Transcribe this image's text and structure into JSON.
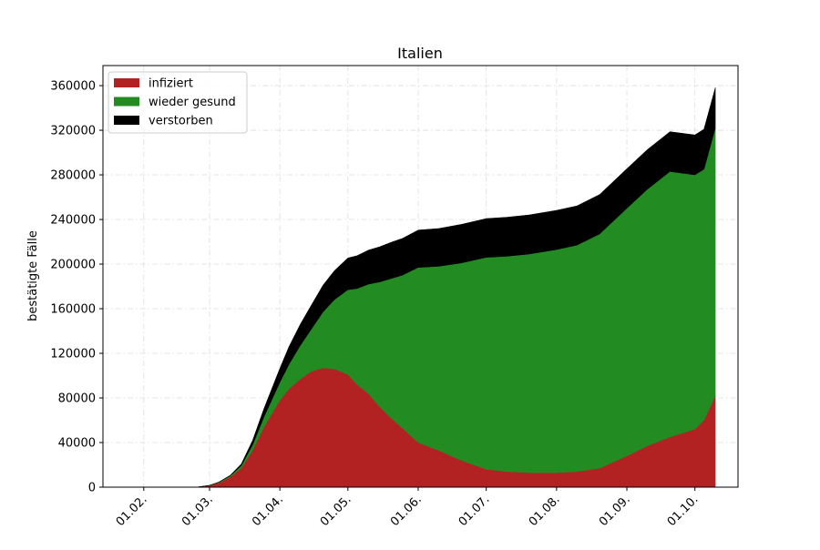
{
  "chart_data": {
    "type": "area",
    "stacked": true,
    "title": "Italien",
    "xlabel": "",
    "ylabel": "bestätigte Fälle",
    "ylim": [
      0,
      378000
    ],
    "xlim": [
      "2020-01-14",
      "2020-10-20"
    ],
    "yticks": [
      0,
      40000,
      80000,
      120000,
      160000,
      200000,
      240000,
      280000,
      320000,
      360000
    ],
    "xticks": [
      {
        "date": "2020-02-01",
        "label": "01.02."
      },
      {
        "date": "2020-03-01",
        "label": "01.03."
      },
      {
        "date": "2020-04-01",
        "label": "01.04."
      },
      {
        "date": "2020-05-01",
        "label": "01.05."
      },
      {
        "date": "2020-06-01",
        "label": "01.06."
      },
      {
        "date": "2020-07-01",
        "label": "01.07."
      },
      {
        "date": "2020-08-01",
        "label": "01.08."
      },
      {
        "date": "2020-09-01",
        "label": "01.09."
      },
      {
        "date": "2020-10-01",
        "label": "01.10."
      }
    ],
    "grid": true,
    "legend_position": "top-left",
    "x": [
      "2020-01-22",
      "2020-02-01",
      "2020-02-15",
      "2020-02-25",
      "2020-03-01",
      "2020-03-05",
      "2020-03-10",
      "2020-03-15",
      "2020-03-20",
      "2020-03-25",
      "2020-04-01",
      "2020-04-05",
      "2020-04-10",
      "2020-04-15",
      "2020-04-20",
      "2020-04-25",
      "2020-05-01",
      "2020-05-05",
      "2020-05-10",
      "2020-05-15",
      "2020-05-20",
      "2020-05-25",
      "2020-06-01",
      "2020-06-10",
      "2020-06-20",
      "2020-07-01",
      "2020-07-10",
      "2020-07-20",
      "2020-08-01",
      "2020-08-10",
      "2020-08-20",
      "2020-09-01",
      "2020-09-10",
      "2020-09-20",
      "2020-10-01",
      "2020-10-05",
      "2020-10-10"
    ],
    "series": [
      {
        "name": "infiziert",
        "color": "#b22222",
        "values": [
          0,
          0,
          0,
          200,
          1500,
          3900,
          9000,
          17000,
          33000,
          54000,
          78000,
          88000,
          97000,
          104000,
          107000,
          106000,
          101000,
          92000,
          84000,
          72000,
          62000,
          53000,
          40000,
          33000,
          24000,
          16000,
          14000,
          13000,
          13000,
          14000,
          17000,
          28000,
          37000,
          45000,
          52000,
          60000,
          82000
        ]
      },
      {
        "name": "wieder gesund",
        "color": "#228b22",
        "values": [
          0,
          0,
          0,
          0,
          100,
          500,
          1000,
          2300,
          5000,
          9000,
          16000,
          22000,
          30000,
          38000,
          50000,
          62000,
          76000,
          86000,
          98000,
          112000,
          125000,
          137000,
          157000,
          165000,
          177000,
          190000,
          193000,
          196000,
          200000,
          203000,
          210000,
          222000,
          230000,
          238000,
          228000,
          225000,
          240000
        ]
      },
      {
        "name": "verstorben",
        "color": "#000000",
        "values": [
          0,
          0,
          0,
          10,
          30,
          120,
          500,
          1500,
          4000,
          7500,
          12500,
          15900,
          19000,
          21600,
          24000,
          26000,
          28500,
          29500,
          30500,
          31500,
          32500,
          33000,
          33500,
          33900,
          34600,
          34800,
          35000,
          35100,
          35200,
          35200,
          35400,
          35500,
          35600,
          35700,
          35800,
          36000,
          36200
        ]
      }
    ]
  }
}
